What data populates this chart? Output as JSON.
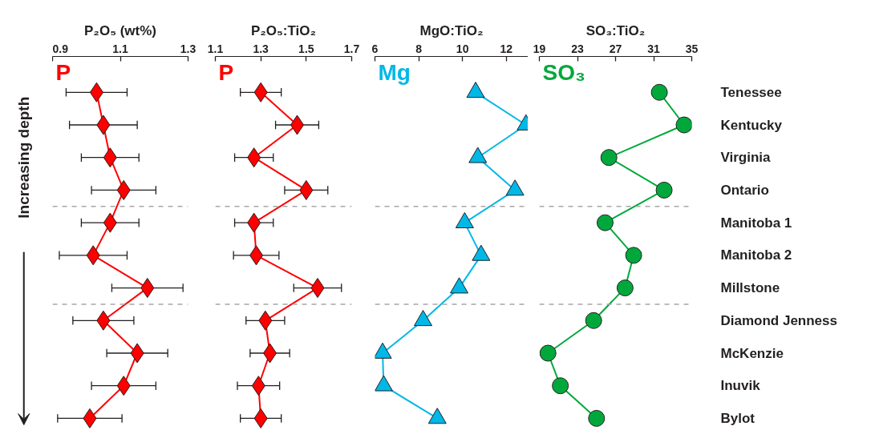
{
  "chart_data": [
    {
      "type": "line",
      "orientation": "horizontal",
      "xlabel": "P₂O₅ (wt%)",
      "marker": "diamond",
      "line_style": "solid",
      "grid": false,
      "tick_labels": "x",
      "categories": [
        null,
        null,
        null,
        null,
        null,
        null,
        null,
        null,
        null,
        null,
        null
      ],
      "xlim": [
        0.9,
        1.3
      ],
      "xticks": [
        0.9,
        1.1,
        1.3
      ],
      "series": [
        {
          "name": "P",
          "color": "#ff0000",
          "values": [
            1.03,
            1.05,
            1.07,
            1.11,
            1.07,
            1.02,
            1.18,
            1.05,
            1.15,
            1.11,
            1.01
          ],
          "errors": [
            0.09,
            0.1,
            0.085,
            0.095,
            0.085,
            0.1,
            0.105,
            0.09,
            0.09,
            0.095,
            0.095
          ]
        }
      ],
      "annotations": [
        "Increasing depth"
      ]
    },
    {
      "type": "line",
      "orientation": "horizontal",
      "xlabel": "P₂O₅:TiO₂",
      "marker": "diamond",
      "line_style": "solid",
      "grid": false,
      "tick_labels": "x",
      "categories": [
        null,
        null,
        null,
        null,
        null,
        null,
        null,
        null,
        null,
        null,
        null
      ],
      "xlim": [
        1.1,
        1.7
      ],
      "xticks": [
        1.1,
        1.3,
        1.5,
        1.7
      ],
      "series": [
        {
          "name": "P",
          "color": "#ff0000",
          "values": [
            1.3,
            1.46,
            1.27,
            1.5,
            1.27,
            1.28,
            1.55,
            1.32,
            1.34,
            1.29,
            1.3
          ],
          "errors": [
            0.09,
            0.095,
            0.085,
            0.095,
            0.085,
            0.1,
            0.105,
            0.085,
            0.087,
            0.093,
            0.09
          ]
        }
      ]
    },
    {
      "type": "line",
      "orientation": "horizontal",
      "xlabel": "MgO:TiO₂",
      "marker": "triangle",
      "line_style": "solid",
      "grid": false,
      "tick_labels": "x",
      "categories": [
        null,
        null,
        null,
        null,
        null,
        null,
        null,
        null,
        null,
        null,
        null
      ],
      "xlim": [
        6,
        13
      ],
      "xticks": [
        6,
        8,
        10,
        12
      ],
      "series": [
        {
          "name": "Mg",
          "color": "#00b8e8",
          "values": [
            10.6,
            12.9,
            10.7,
            12.4,
            10.1,
            10.85,
            9.85,
            8.2,
            6.35,
            6.4,
            8.85
          ]
        }
      ]
    },
    {
      "type": "line",
      "orientation": "horizontal",
      "xlabel": "SO₃:TiO₂",
      "marker": "circle",
      "line_style": "solid",
      "grid": false,
      "categories": [
        "Tenessee",
        "Kentucky",
        "Virginia",
        "Ontario",
        "Manitoba 1",
        "Manitoba 2",
        "Millstone",
        "Diamond Jenness",
        "McKenzie",
        "Inuvik",
        "Bylot"
      ],
      "xlim": [
        19,
        35
      ],
      "xticks": [
        19,
        23,
        27,
        31,
        35
      ],
      "series": [
        {
          "name": "SO₃",
          "color": "#00a83c",
          "values": [
            31.6,
            34.2,
            26.3,
            32.1,
            25.9,
            28.9,
            28.0,
            24.7,
            19.9,
            21.2,
            25.0
          ]
        }
      ]
    }
  ]
}
